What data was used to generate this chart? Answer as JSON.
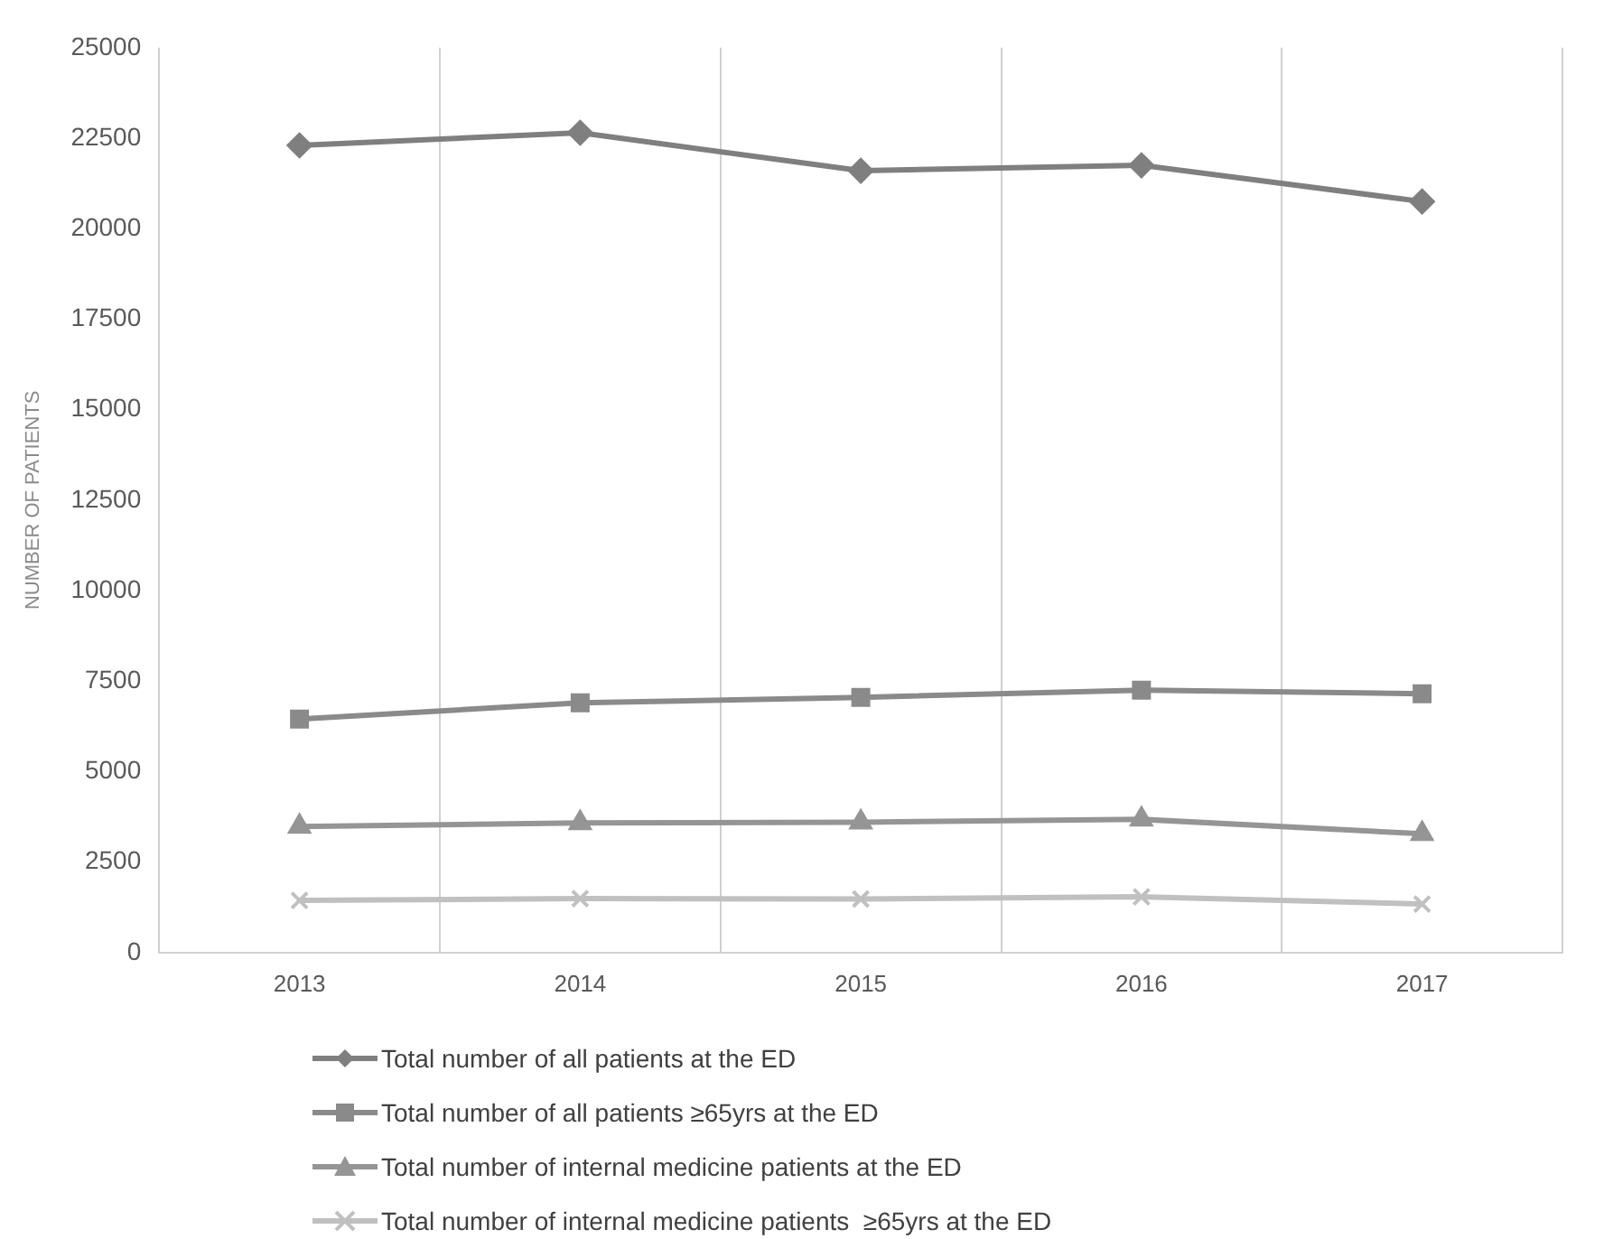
{
  "chart_data": {
    "type": "line",
    "ylabel": "NUMBER OF PATIENTS",
    "categories": [
      "2013",
      "2014",
      "2015",
      "2016",
      "2017"
    ],
    "ylim": [
      0,
      25000
    ],
    "yticks": [
      0,
      2500,
      5000,
      7500,
      10000,
      12500,
      15000,
      17500,
      20000,
      22500,
      25000
    ],
    "grid": "x",
    "legend": "bottom",
    "series": [
      {
        "name": "Total number of all patients at the ED",
        "color": "#7f7f7f",
        "marker": "diamond",
        "values": [
          22300,
          22650,
          21600,
          21750,
          20750
        ]
      },
      {
        "name": "Total number of all patients ≥65yrs at the ED",
        "color": "#8a8a8a",
        "marker": "square",
        "values": [
          6450,
          6900,
          7050,
          7250,
          7150
        ]
      },
      {
        "name": "Total number of internal medicine patients at the ED",
        "color": "#959595",
        "marker": "triangle",
        "values": [
          3480,
          3580,
          3600,
          3680,
          3280
        ]
      },
      {
        "name": "Total number of internal medicine patients  ≥65yrs at the ED",
        "color": "#c0c0c0",
        "marker": "cross",
        "values": [
          1440,
          1490,
          1480,
          1540,
          1340
        ]
      }
    ]
  }
}
